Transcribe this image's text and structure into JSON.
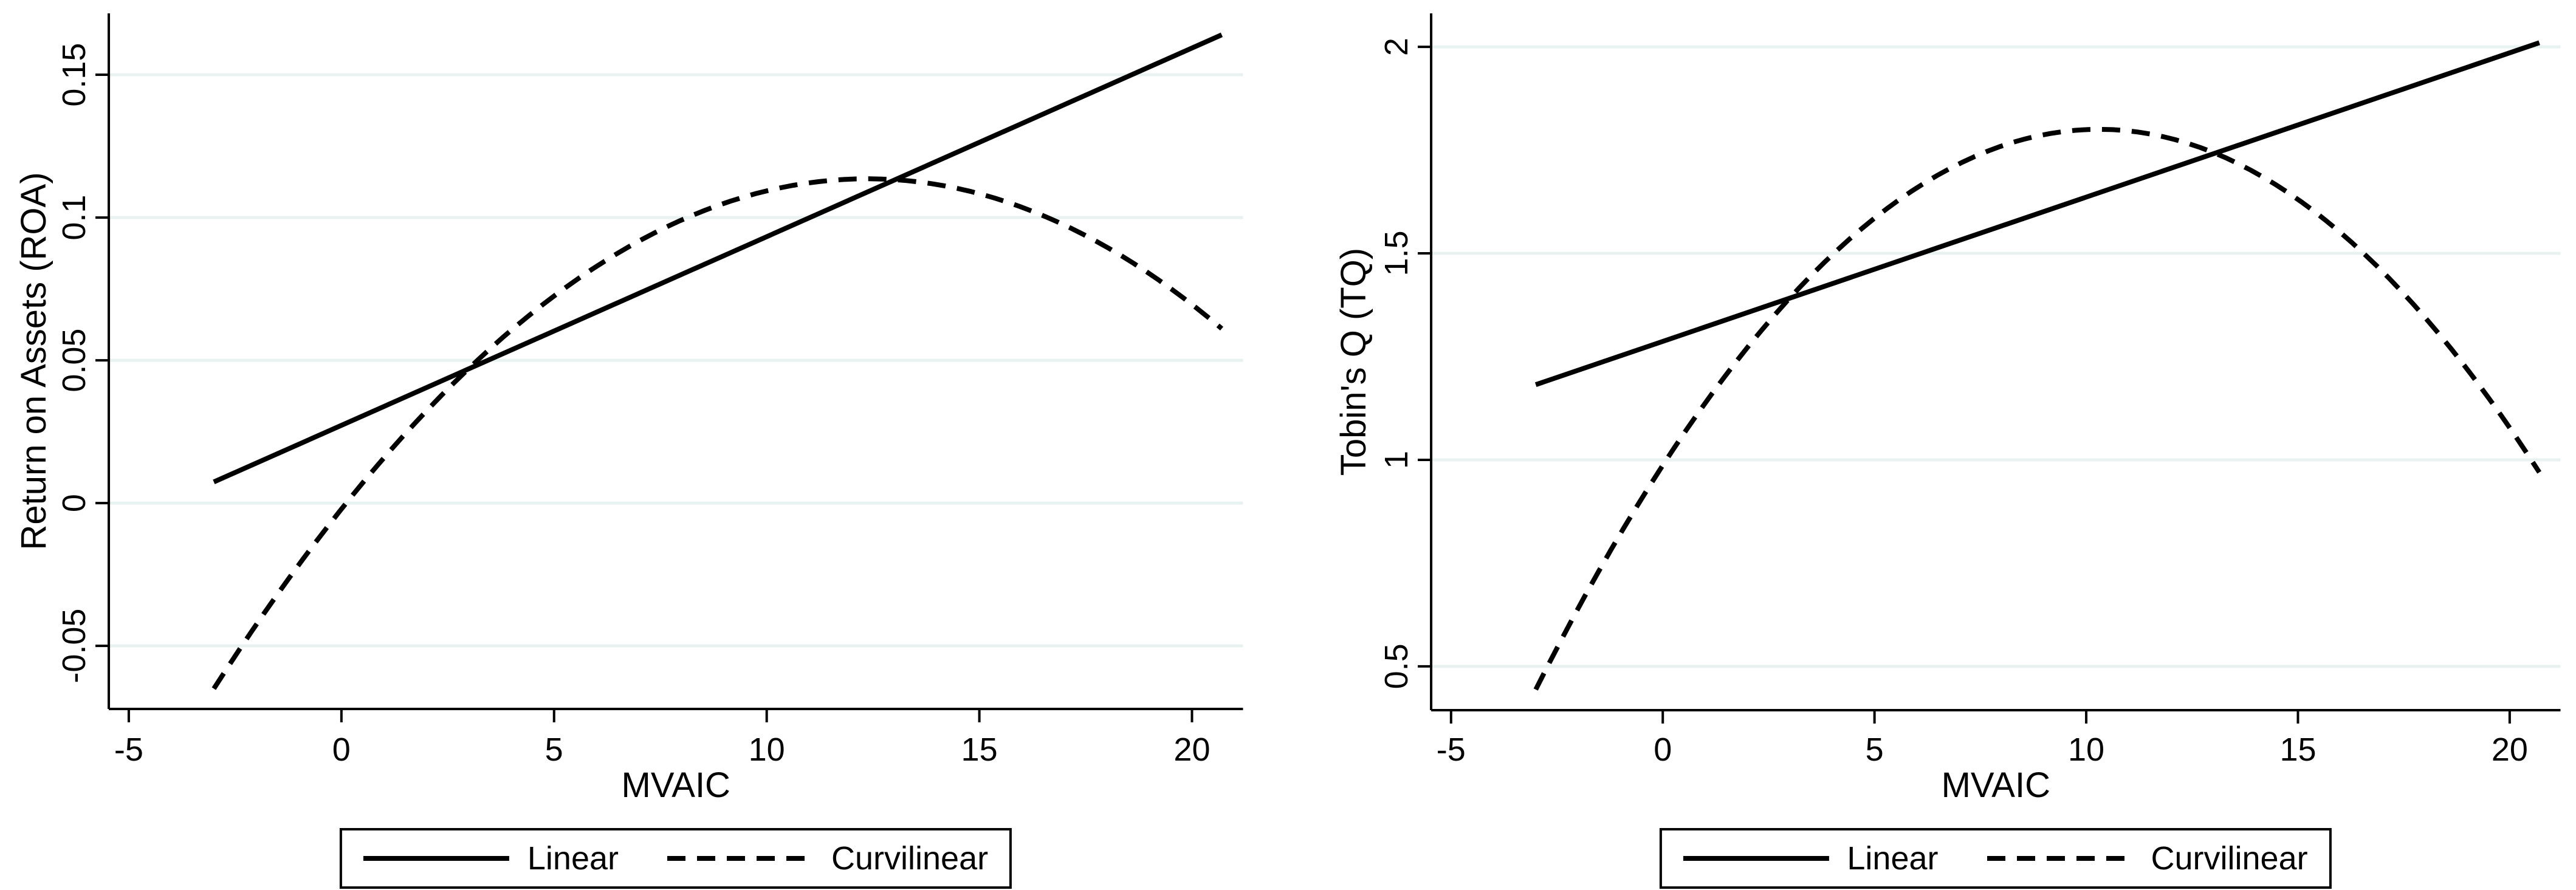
{
  "figure": {
    "background": "#ffffff",
    "line_color": "#000000",
    "grid_color": "#e8f2f0",
    "axis_color": "#000000",
    "legend_border_color": "#000000"
  },
  "chart_data": [
    {
      "type": "line",
      "panel": "left",
      "title": "",
      "xlabel": "MVAIC",
      "ylabel": "Return on Assets (ROA)",
      "xlim": [
        -5.47,
        21.2
      ],
      "ylim": [
        -0.0721,
        0.1715
      ],
      "grid": "horizontal-only",
      "legend_position": "bottom-center",
      "x_ticks": [
        {
          "v": -5,
          "label": "-5"
        },
        {
          "v": 0,
          "label": "0"
        },
        {
          "v": 5,
          "label": "5"
        },
        {
          "v": 10,
          "label": "10"
        },
        {
          "v": 15,
          "label": "15"
        },
        {
          "v": 20,
          "label": "20"
        }
      ],
      "y_ticks": [
        {
          "v": -0.05,
          "label": "-0.05"
        },
        {
          "v": 0,
          "label": "0"
        },
        {
          "v": 0.05,
          "label": "0.05"
        },
        {
          "v": 0.1,
          "label": "0.1"
        },
        {
          "v": 0.15,
          "label": "0.15"
        }
      ],
      "series": [
        {
          "name": "Linear",
          "style": "solid",
          "points": [
            [
              -3,
              0.0074
            ],
            [
              20.7,
              0.164
            ]
          ]
        },
        {
          "name": "Curvilinear",
          "style": "dashed",
          "x_range": [
            -3,
            20.7
          ],
          "quadratic": {
            "a": -0.000756,
            "b": 0.018702,
            "c": -0.002087
          },
          "key_points": {
            "start": [
              -3,
              -0.065
            ],
            "peak": [
              12.4,
              0.1135
            ],
            "end": [
              20.7,
              0.061
            ]
          }
        }
      ]
    },
    {
      "type": "line",
      "panel": "right",
      "title": "",
      "xlabel": "MVAIC",
      "ylabel": "Tobin's Q (TQ)",
      "xlim": [
        -5.47,
        21.2
      ],
      "ylim": [
        0.394,
        2.081
      ],
      "grid": "horizontal-only",
      "legend_position": "bottom-center",
      "x_ticks": [
        {
          "v": -5,
          "label": "-5"
        },
        {
          "v": 0,
          "label": "0"
        },
        {
          "v": 5,
          "label": "5"
        },
        {
          "v": 10,
          "label": "10"
        },
        {
          "v": 15,
          "label": "15"
        },
        {
          "v": 20,
          "label": "20"
        }
      ],
      "y_ticks": [
        {
          "v": 0.5,
          "label": "0.5"
        },
        {
          "v": 1,
          "label": "1"
        },
        {
          "v": 1.5,
          "label": "1.5"
        },
        {
          "v": 2,
          "label": "2"
        }
      ],
      "series": [
        {
          "name": "Linear",
          "style": "solid",
          "points": [
            [
              -3,
              1.182
            ],
            [
              20.7,
              2.01
            ]
          ]
        },
        {
          "name": "Curvilinear",
          "style": "dashed",
          "x_range": [
            -3,
            20.7
          ],
          "quadratic": {
            "a": -0.007672,
            "b": 0.157981,
            "c": 0.98699
          },
          "key_points": {
            "start": [
              -3,
              0.444
            ],
            "peak": [
              10.3,
              1.8
            ],
            "end": [
              20.7,
              0.97
            ]
          }
        }
      ]
    }
  ]
}
